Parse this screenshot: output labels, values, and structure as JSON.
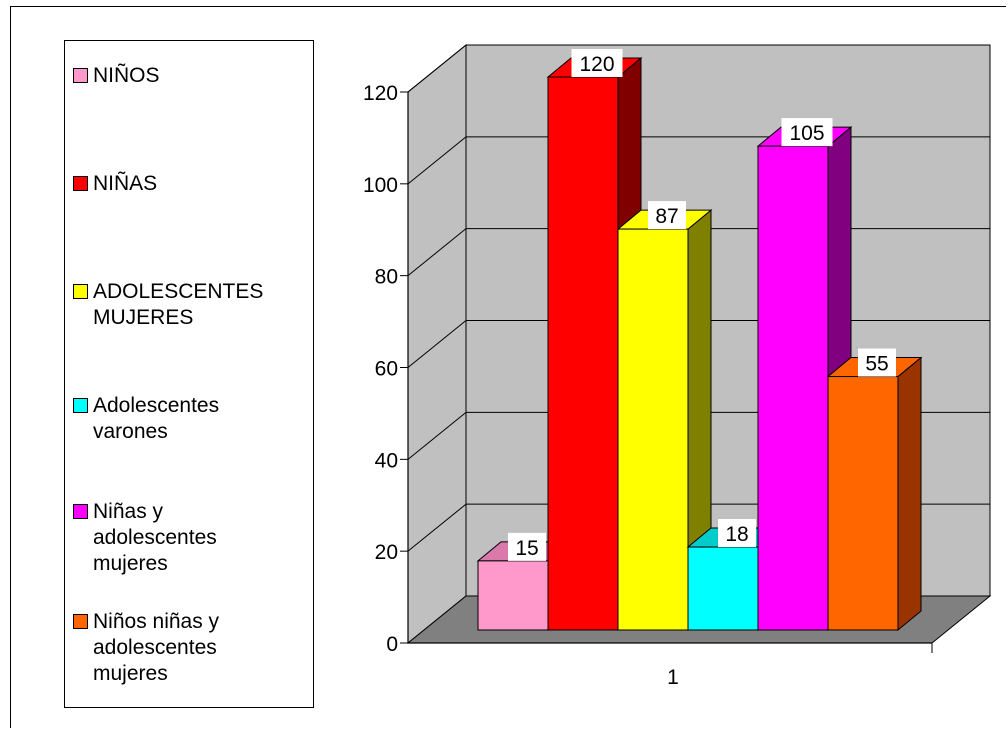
{
  "chart_data": {
    "type": "bar",
    "categories": [
      "1"
    ],
    "series": [
      {
        "name": "NIÑOS",
        "values": [
          15
        ],
        "color": "#ff99cc",
        "side": "#c06a96",
        "top": "#d97aab"
      },
      {
        "name": "NIÑAS",
        "values": [
          120
        ],
        "color": "#ff0000",
        "side": "#800000",
        "top": "#ff0000"
      },
      {
        "name": "ADOLESCENTES MUJERES",
        "values": [
          87
        ],
        "color": "#ffff00",
        "side": "#808000",
        "top": "#ffff00"
      },
      {
        "name": "Adolescentes varones",
        "values": [
          18
        ],
        "color": "#00ffff",
        "side": "#008080",
        "top": "#00cccc"
      },
      {
        "name": "Niñas y adolescentes mujeres",
        "values": [
          105
        ],
        "color": "#ff00ff",
        "side": "#800080",
        "top": "#ff00ff"
      },
      {
        "name": "Niños niñas y adolescentes mujeres",
        "values": [
          55
        ],
        "color": "#ff6600",
        "side": "#993300",
        "top": "#ff6600"
      }
    ],
    "data_labels": [
      "15",
      "120",
      "87",
      "18",
      "105",
      "55"
    ],
    "yticks": [
      "0",
      "20",
      "40",
      "60",
      "80",
      "100",
      "120"
    ],
    "ylim": [
      0,
      120
    ],
    "grid": true,
    "legend_position": "left",
    "title": "",
    "xlabel": "",
    "ylabel": ""
  }
}
